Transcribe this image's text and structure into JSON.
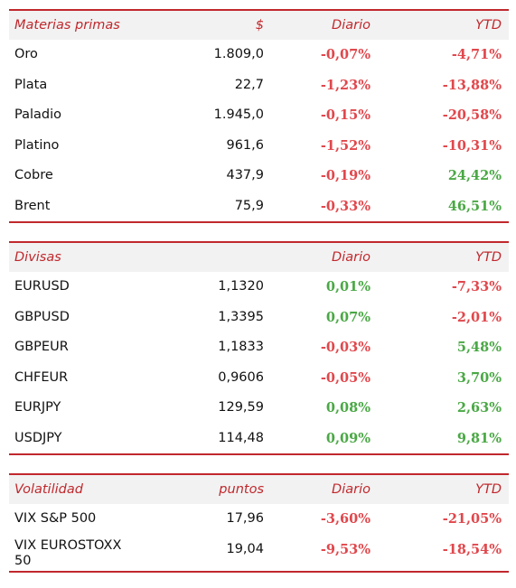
{
  "commodities": {
    "headers": [
      "Materias primas",
      "$",
      "Diario",
      "YTD"
    ],
    "rows": [
      {
        "name": "Oro",
        "value": "1.809,0",
        "daily": "-0,07%",
        "ytd": "-4,71%",
        "daily_sign": "neg",
        "ytd_sign": "neg"
      },
      {
        "name": "Plata",
        "value": "22,7",
        "daily": "-1,23%",
        "ytd": "-13,88%",
        "daily_sign": "neg",
        "ytd_sign": "neg"
      },
      {
        "name": "Paladio",
        "value": "1.945,0",
        "daily": "-0,15%",
        "ytd": "-20,58%",
        "daily_sign": "neg",
        "ytd_sign": "neg"
      },
      {
        "name": "Platino",
        "value": "961,6",
        "daily": "-1,52%",
        "ytd": "-10,31%",
        "daily_sign": "neg",
        "ytd_sign": "neg"
      },
      {
        "name": "Cobre",
        "value": "437,9",
        "daily": "-0,19%",
        "ytd": "24,42%",
        "daily_sign": "neg",
        "ytd_sign": "pos"
      },
      {
        "name": "Brent",
        "value": "75,9",
        "daily": "-0,33%",
        "ytd": "46,51%",
        "daily_sign": "neg",
        "ytd_sign": "pos"
      }
    ]
  },
  "currencies": {
    "headers": [
      "Divisas",
      "",
      "Diario",
      "YTD"
    ],
    "rows": [
      {
        "name": "EURUSD",
        "value": "1,1320",
        "daily": "0,01%",
        "ytd": "-7,33%",
        "daily_sign": "pos",
        "ytd_sign": "neg"
      },
      {
        "name": "GBPUSD",
        "value": "1,3395",
        "daily": "0,07%",
        "ytd": "-2,01%",
        "daily_sign": "pos",
        "ytd_sign": "neg"
      },
      {
        "name": "GBPEUR",
        "value": "1,1833",
        "daily": "-0,03%",
        "ytd": "5,48%",
        "daily_sign": "neg",
        "ytd_sign": "pos"
      },
      {
        "name": "CHFEUR",
        "value": "0,9606",
        "daily": "-0,05%",
        "ytd": "3,70%",
        "daily_sign": "neg",
        "ytd_sign": "pos"
      },
      {
        "name": "EURJPY",
        "value": "129,59",
        "daily": "0,08%",
        "ytd": "2,63%",
        "daily_sign": "pos",
        "ytd_sign": "pos"
      },
      {
        "name": "USDJPY",
        "value": "114,48",
        "daily": "0,09%",
        "ytd": "9,81%",
        "daily_sign": "pos",
        "ytd_sign": "pos"
      }
    ]
  },
  "volatility": {
    "headers": [
      "Volatilidad",
      "puntos",
      "Diario",
      "YTD"
    ],
    "rows": [
      {
        "name": "VIX S&P 500",
        "value": "17,96",
        "daily": "-3,60%",
        "ytd": "-21,05%",
        "daily_sign": "neg",
        "ytd_sign": "neg"
      },
      {
        "name": "VIX EUROSTOXX 50",
        "value": "19,04",
        "daily": "-9,53%",
        "ytd": "-18,54%",
        "daily_sign": "neg",
        "ytd_sign": "neg"
      }
    ]
  },
  "colors": {
    "accent": "#c0282d",
    "negative": "#e0474c",
    "positive": "#4aa845",
    "header_bg": "#f2f2f2"
  }
}
